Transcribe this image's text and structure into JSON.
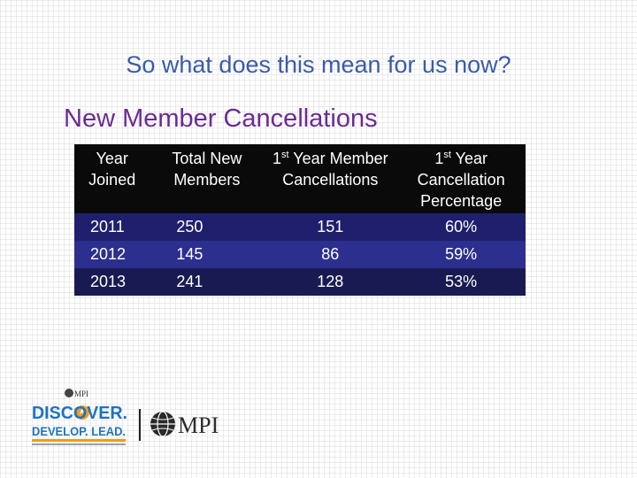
{
  "slide": {
    "title": "So what does this mean for us now?",
    "section_title": "New Member Cancellations"
  },
  "table": {
    "headers": {
      "year_joined": "Year Joined",
      "total_new_members": "Total New Members",
      "cancellations_prefix": "1",
      "cancellations_sup": "st",
      "cancellations_rest": " Year Member Cancellations",
      "percentage_prefix": "1",
      "percentage_sup": "st",
      "percentage_rest": " Year Cancellation Percentage"
    },
    "rows": [
      {
        "year": "2011",
        "total": "250",
        "cancellations": "151",
        "percentage": "60%"
      },
      {
        "year": "2012",
        "total": "145",
        "cancellations": "86",
        "percentage": "59%"
      },
      {
        "year": "2013",
        "total": "241",
        "cancellations": "128",
        "percentage": "53%"
      }
    ]
  },
  "logos": {
    "discover_line1": "DISCOVER.",
    "discover_line2": "DEVELOP. LEAD.",
    "mpi_small": "MPI",
    "mpi_large": "MPI"
  },
  "colors": {
    "title_blue": "#3a5ba8",
    "section_purple": "#6b2c91",
    "header_black": "#0a0a0a",
    "row_navy": "#1f1f6e",
    "discover_blue": "#1e73be",
    "accent_orange": "#f39a1e"
  }
}
